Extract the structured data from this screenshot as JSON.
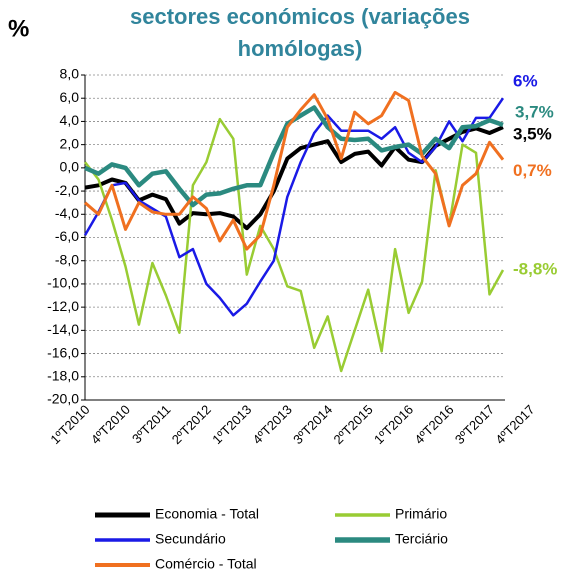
{
  "chart_data": {
    "type": "line",
    "title": [
      "sectores económicos (variações",
      "homólogas)"
    ],
    "y_label": "%",
    "categories": [
      "1ºT2010",
      null,
      null,
      "4ºT2010",
      null,
      null,
      "3ºT2011",
      null,
      null,
      "2ºT2012",
      null,
      null,
      "1ºT2013",
      null,
      null,
      "4ºT2013",
      null,
      null,
      "3ºT2014",
      null,
      null,
      "2ºT2015",
      null,
      null,
      "1ºT2016",
      null,
      null,
      "4ºT2016",
      null,
      null,
      "3ºT2017",
      "4ºT2017"
    ],
    "ylim": [
      -20,
      8
    ],
    "yticks": [
      {
        "value": -20,
        "label": "-20,0"
      },
      {
        "value": -18,
        "label": "-18,0"
      },
      {
        "value": -16,
        "label": "-16,0"
      },
      {
        "value": -14,
        "label": "-14,0"
      },
      {
        "value": -12,
        "label": "-12,0"
      },
      {
        "value": -10,
        "label": "-10,0"
      },
      {
        "value": -8,
        "label": "-8,0"
      },
      {
        "value": -6,
        "label": "-6,0"
      },
      {
        "value": -4,
        "label": "-4,0"
      },
      {
        "value": -2,
        "label": "-2,0"
      },
      {
        "value": 0,
        "label": "0,0"
      },
      {
        "value": 2,
        "label": "2,0"
      },
      {
        "value": 4,
        "label": "4,0"
      },
      {
        "value": 6,
        "label": "6,0"
      },
      {
        "value": 8,
        "label": "8,0"
      }
    ],
    "grid": true,
    "series": [
      {
        "name": "Economia - Total",
        "color": "#000000",
        "values": [
          -1.7,
          -1.5,
          -1,
          -1.3,
          -2.8,
          -2.3,
          -2.7,
          -4.8,
          -3.9,
          -4,
          -3.9,
          -4.2,
          -5.2,
          -4,
          -2,
          0.8,
          1.7,
          2,
          2.3,
          0.5,
          1.2,
          1.4,
          0.2,
          1.8,
          0.7,
          0.5,
          1.9,
          2.5,
          3.1,
          3.4,
          3,
          3.5
        ],
        "value_labels": [
          null,
          null,
          null,
          null,
          null,
          null,
          null,
          null,
          null,
          null,
          null,
          null,
          null,
          null,
          null,
          null,
          null,
          null,
          null,
          null,
          null,
          null,
          null,
          null,
          null,
          null,
          null,
          null,
          null,
          null,
          null,
          "3,5%"
        ]
      },
      {
        "name": "Primário",
        "color": "#99cc33",
        "values": [
          0.5,
          -1,
          -4.5,
          -8.5,
          -13.5,
          -8.2,
          -11,
          -14.2,
          -1.5,
          0.5,
          4.2,
          2.5,
          -9.2,
          -5,
          -7,
          -10.2,
          -10.6,
          -15.5,
          -12.8,
          -17.5,
          -14,
          -10.5,
          -15.8,
          -7,
          -12.5,
          -9.8,
          -0.2,
          -5,
          2,
          1.3,
          -10.9,
          -8.8
        ],
        "value_labels": [
          null,
          null,
          null,
          null,
          null,
          null,
          null,
          null,
          null,
          null,
          null,
          null,
          null,
          null,
          null,
          null,
          null,
          null,
          null,
          null,
          null,
          null,
          null,
          null,
          null,
          null,
          null,
          null,
          null,
          null,
          null,
          "-8,8%"
        ]
      },
      {
        "name": "Secundário",
        "color": "#1a1ae6",
        "values": [
          -5.8,
          -3.8,
          -1.5,
          -1.3,
          -2.8,
          -3.5,
          -4.2,
          -7.7,
          -7,
          -10,
          -11.2,
          -12.7,
          -11.7,
          -9.8,
          -8,
          -2.5,
          0.5,
          3,
          4.5,
          3.2,
          3.2,
          3.2,
          2.5,
          3.5,
          1.3,
          0.5,
          1.8,
          4,
          2.3,
          4.3,
          4.3,
          6
        ],
        "value_labels": [
          null,
          null,
          null,
          null,
          null,
          null,
          null,
          null,
          null,
          null,
          null,
          null,
          null,
          null,
          null,
          null,
          null,
          null,
          null,
          null,
          null,
          null,
          null,
          null,
          null,
          null,
          null,
          null,
          null,
          null,
          null,
          "6%"
        ]
      },
      {
        "name": "Terciário",
        "color": "#2b8a80",
        "values": [
          0,
          -0.5,
          0.3,
          0,
          -1.5,
          -0.5,
          -0.3,
          -1.8,
          -3.2,
          -2.3,
          -2.2,
          -1.8,
          -1.5,
          -1.5,
          1.3,
          3.8,
          4.5,
          5.2,
          3.5,
          2.5,
          2.4,
          2.5,
          1.5,
          1.8,
          2,
          1.2,
          2.5,
          1.7,
          3.5,
          3.6,
          4.1,
          3.7
        ],
        "value_labels": [
          null,
          null,
          null,
          null,
          null,
          null,
          null,
          null,
          null,
          null,
          null,
          null,
          null,
          null,
          null,
          null,
          null,
          null,
          null,
          null,
          null,
          null,
          null,
          null,
          null,
          null,
          null,
          null,
          null,
          null,
          null,
          "3,7%"
        ]
      },
      {
        "name": "Comércio - Total",
        "color": "#f07020",
        "values": [
          -3,
          -4,
          -1.5,
          -5.3,
          -3,
          -3.8,
          -4,
          -4,
          -2.5,
          -3.5,
          -6.3,
          -4.5,
          -7,
          -5.8,
          -1.5,
          3.5,
          5,
          6.3,
          4.2,
          0.8,
          4.8,
          3.8,
          4.5,
          6.5,
          5.8,
          1,
          -0.5,
          -5,
          -1.5,
          -0.5,
          2.2,
          0.7
        ],
        "value_labels": [
          null,
          null,
          null,
          null,
          null,
          null,
          null,
          null,
          null,
          null,
          null,
          null,
          null,
          null,
          null,
          null,
          null,
          null,
          null,
          null,
          null,
          null,
          null,
          null,
          null,
          null,
          null,
          null,
          null,
          null,
          null,
          "0,7%"
        ]
      }
    ]
  }
}
